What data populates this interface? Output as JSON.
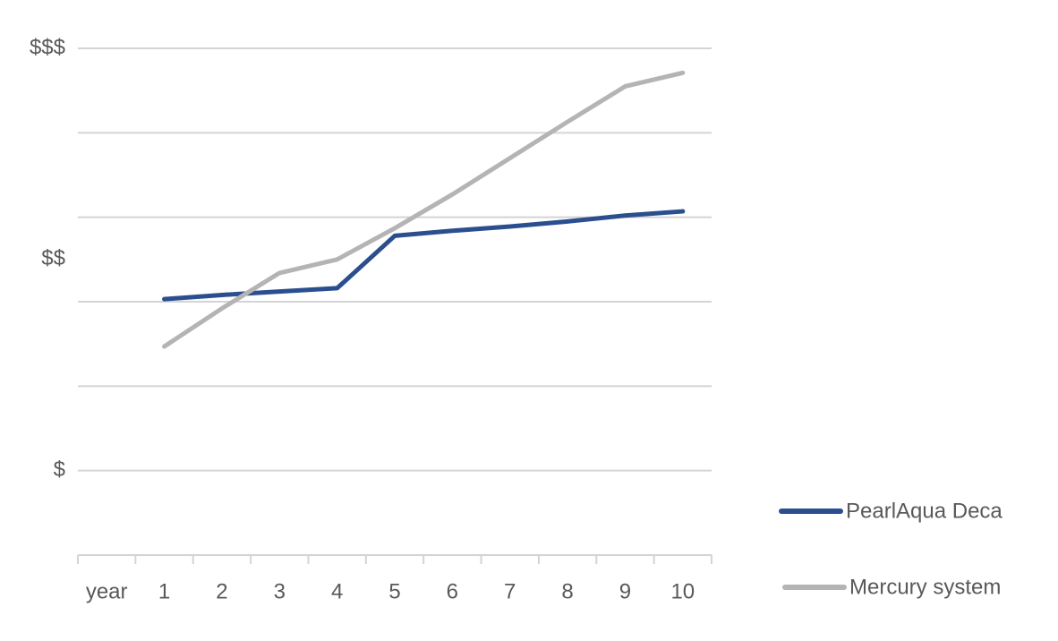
{
  "chart_data": {
    "type": "line",
    "categories": [
      "year",
      "1",
      "2",
      "3",
      "4",
      "5",
      "6",
      "7",
      "8",
      "9",
      "10"
    ],
    "series": [
      {
        "name": "PearlAqua Deca",
        "color": "#2b4f8e",
        "values": [
          null,
          3.03,
          3.08,
          3.12,
          3.16,
          3.78,
          3.84,
          3.89,
          3.95,
          4.02,
          4.07
        ]
      },
      {
        "name": "Mercury system",
        "color": "#b4b4b4",
        "values": [
          null,
          2.47,
          2.92,
          3.34,
          3.5,
          3.87,
          4.27,
          4.7,
          5.13,
          5.55,
          5.71
        ]
      }
    ],
    "ylim": [
      0,
      6
    ],
    "yticks": [
      {
        "value": 1,
        "label": "$"
      },
      {
        "value": 3.5,
        "label": "$$"
      },
      {
        "value": 6,
        "label": "$$$"
      }
    ],
    "ygrid": [
      1,
      2,
      3,
      4,
      5,
      6
    ],
    "grid": true,
    "legend": "right"
  }
}
